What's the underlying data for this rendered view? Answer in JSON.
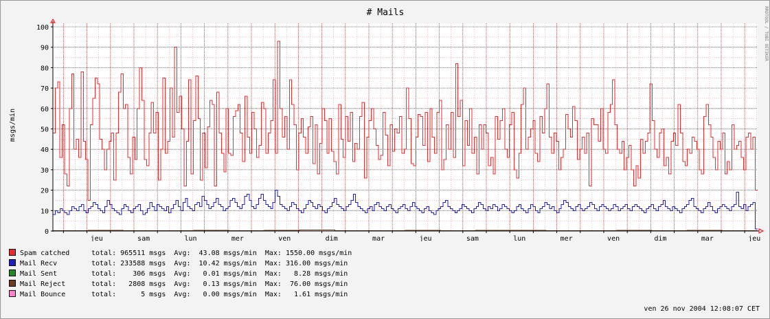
{
  "chart_data": {
    "type": "line",
    "title": "# Mails",
    "ylabel": "msgs/min",
    "side_label": "RRDTOOL / TOBI OETIKER",
    "ylim": [
      0,
      100
    ],
    "yticks": [
      0,
      10,
      20,
      30,
      40,
      50,
      60,
      70,
      80,
      90,
      100
    ],
    "xlabels": [
      "jeu",
      "sam",
      "lun",
      "mer",
      "ven",
      "dim",
      "mar",
      "jeu",
      "sam",
      "lun",
      "mer",
      "ven",
      "dim",
      "mar",
      "jeu"
    ],
    "grid": true,
    "colors": {
      "background": "#f3f3f3",
      "plot": "#ffffff",
      "grid": "#c02020",
      "spam": "#ee2b2b",
      "recv": "#1e1ebe",
      "sent": "#1e8c1e",
      "reject": "#6b3d1a",
      "bounce": "#ff7fd0",
      "arrow": "#ff0000"
    },
    "series": [
      {
        "name": "Spam catched",
        "color": "#ee2b2b",
        "values": [
          48,
          70,
          73,
          36,
          52,
          28,
          22,
          60,
          77,
          40,
          45,
          36,
          78,
          44,
          35,
          15,
          52,
          65,
          75,
          72,
          45,
          40,
          30,
          40,
          44,
          48,
          25,
          48,
          68,
          77,
          60,
          62,
          36,
          28,
          46,
          35,
          60,
          80,
          64,
          35,
          32,
          48,
          63,
          48,
          58,
          25,
          40,
          75,
          38,
          44,
          70,
          46,
          90,
          58,
          66,
          50,
          22,
          44,
          74,
          28,
          54,
          76,
          55,
          25,
          48,
          31,
          51,
          64,
          62,
          22,
          68,
          48,
          38,
          29,
          60,
          38,
          37,
          56,
          59,
          62,
          48,
          34,
          66,
          46,
          38,
          58,
          50,
          36,
          42,
          63,
          60,
          38,
          48,
          54,
          74,
          38,
          93,
          60,
          46,
          56,
          40,
          74,
          62,
          52,
          30,
          48,
          55,
          46,
          38,
          51,
          56,
          33,
          52,
          28,
          43,
          60,
          54,
          38,
          55,
          39,
          34,
          28,
          62,
          45,
          36,
          56,
          44,
          58,
          34,
          43,
          40,
          56,
          63,
          26,
          46,
          54,
          60,
          50,
          42,
          35,
          37,
          58,
          47,
          32,
          52,
          39,
          50,
          48,
          56,
          38,
          40,
          70,
          55,
          33,
          32,
          46,
          57,
          56,
          42,
          58,
          34,
          60,
          46,
          38,
          58,
          64,
          30,
          35,
          52,
          40,
          58,
          36,
          82,
          56,
          64,
          32,
          54,
          42,
          60,
          38,
          46,
          28,
          52,
          40,
          52,
          48,
          32,
          36,
          28,
          56,
          45,
          54,
          60,
          40,
          36,
          52,
          58,
          30,
          26,
          38,
          62,
          70,
          40,
          46,
          50,
          54,
          38,
          34,
          56,
          48,
          60,
          72,
          46,
          38,
          48,
          44,
          30,
          36,
          40,
          57,
          50,
          46,
          61,
          54,
          35,
          40,
          46,
          38,
          48,
          22,
          55,
          52,
          52,
          44,
          60,
          40,
          38,
          58,
          62,
          74,
          52,
          40,
          38,
          44,
          30,
          36,
          42,
          30,
          22,
          32,
          26,
          45,
          38,
          44,
          48,
          72,
          54,
          40,
          36,
          48,
          50,
          32,
          36,
          28,
          44,
          48,
          42,
          62,
          48,
          34,
          32,
          40,
          38,
          46,
          44,
          40,
          30,
          28,
          56,
          62,
          52,
          46,
          36,
          30,
          44,
          40,
          48,
          28,
          34,
          30,
          52,
          40,
          42,
          44,
          36,
          30,
          46,
          48,
          40,
          46,
          20
        ]
      },
      {
        "name": "Mail Recv",
        "color": "#1e1ebe",
        "values": [
          8,
          10,
          9,
          11,
          10,
          9,
          8,
          10,
          12,
          11,
          10,
          12,
          13,
          10,
          9,
          11,
          12,
          14,
          13,
          11,
          10,
          9,
          12,
          15,
          13,
          11,
          10,
          9,
          8,
          11,
          13,
          12,
          10,
          9,
          11,
          12,
          13,
          10,
          8,
          9,
          11,
          14,
          12,
          10,
          13,
          12,
          11,
          10,
          12,
          9,
          11,
          13,
          15,
          12,
          10,
          14,
          16,
          12,
          11,
          10,
          13,
          14,
          12,
          17,
          15,
          13,
          11,
          12,
          14,
          16,
          13,
          12,
          10,
          11,
          12,
          15,
          16,
          14,
          12,
          11,
          13,
          17,
          18,
          15,
          12,
          11,
          13,
          16,
          18,
          15,
          13,
          12,
          11,
          14,
          20,
          17,
          13,
          12,
          11,
          10,
          12,
          14,
          13,
          11,
          10,
          9,
          11,
          13,
          15,
          14,
          12,
          11,
          13,
          12,
          10,
          9,
          11,
          12,
          14,
          16,
          13,
          12,
          11,
          10,
          12,
          13,
          15,
          18,
          14,
          12,
          11,
          10,
          9,
          11,
          12,
          10,
          13,
          14,
          12,
          11,
          10,
          12,
          13,
          11,
          10,
          9,
          11,
          12,
          13,
          11,
          10,
          12,
          14,
          12,
          11,
          10,
          9,
          11,
          12,
          10,
          9,
          8,
          10,
          11,
          12,
          14,
          15,
          12,
          11,
          10,
          9,
          10,
          11,
          13,
          12,
          11,
          10,
          9,
          11,
          12,
          14,
          13,
          11,
          10,
          12,
          11,
          13,
          12,
          10,
          11,
          13,
          12,
          11,
          10,
          9,
          10,
          12,
          13,
          11,
          10,
          9,
          11,
          13,
          12,
          10,
          9,
          11,
          12,
          14,
          13,
          11,
          12,
          10,
          9,
          11,
          13,
          15,
          14,
          12,
          11,
          10,
          12,
          13,
          11,
          10,
          11,
          12,
          14,
          13,
          11,
          10,
          12,
          13,
          12,
          11,
          10,
          11,
          13,
          12,
          10,
          11,
          12,
          13,
          11,
          10,
          12,
          13,
          12,
          11,
          10,
          9,
          11,
          12,
          13,
          11,
          10,
          12,
          13,
          15,
          12,
          11,
          10,
          12,
          11,
          10,
          9,
          11,
          12,
          13,
          15,
          16,
          12,
          11,
          10,
          9,
          11,
          12,
          14,
          12,
          10,
          9,
          11,
          12,
          13,
          12,
          11,
          10,
          12,
          13,
          19,
          12,
          11,
          13,
          10,
          12,
          13,
          14,
          1
        ]
      },
      {
        "name": "Mail Sent",
        "color": "#1e8c1e",
        "values": [
          0,
          0,
          0,
          0,
          0,
          0,
          0,
          0,
          0,
          0,
          0,
          0
        ]
      },
      {
        "name": "Mail Reject",
        "color": "#6b3d1a",
        "values": [
          0.1,
          0.3,
          0.2,
          0.1,
          0.4,
          0.2,
          0.3,
          0.5,
          0.2,
          0.1,
          0.3,
          0.2,
          0.4,
          0.3,
          0.2,
          0.1,
          0.3,
          0.2,
          0.4,
          0.1
        ]
      },
      {
        "name": "Mail Bounce",
        "color": "#ff7fd0",
        "values": [
          0,
          0,
          0,
          0,
          0,
          0,
          0,
          0,
          0,
          0,
          0,
          0
        ]
      }
    ]
  },
  "legend": [
    {
      "name": "Spam catched",
      "color": "#ee2b2b",
      "stats": "total: 965511 msgs  Avg:  43.08 msgs/min  Max: 1550.00 msgs/min"
    },
    {
      "name": "Mail Recv",
      "color": "#1e1ebe",
      "stats": "total: 233588 msgs  Avg:  10.42 msgs/min  Max: 316.00 msgs/min"
    },
    {
      "name": "Mail Sent",
      "color": "#1e8c1e",
      "stats": "total:    306 msgs  Avg:   0.01 msgs/min  Max:   8.28 msgs/min"
    },
    {
      "name": "Mail Reject",
      "color": "#6b3d1a",
      "stats": "total:   2808 msgs  Avg:   0.13 msgs/min  Max:  76.00 msgs/min"
    },
    {
      "name": "Mail Bounce",
      "color": "#ff7fd0",
      "stats": "total:      5 msgs  Avg:   0.00 msgs/min  Max:   1.61 msgs/min"
    }
  ],
  "timestamp": "ven 26 nov 2004 12:08:07 CET"
}
